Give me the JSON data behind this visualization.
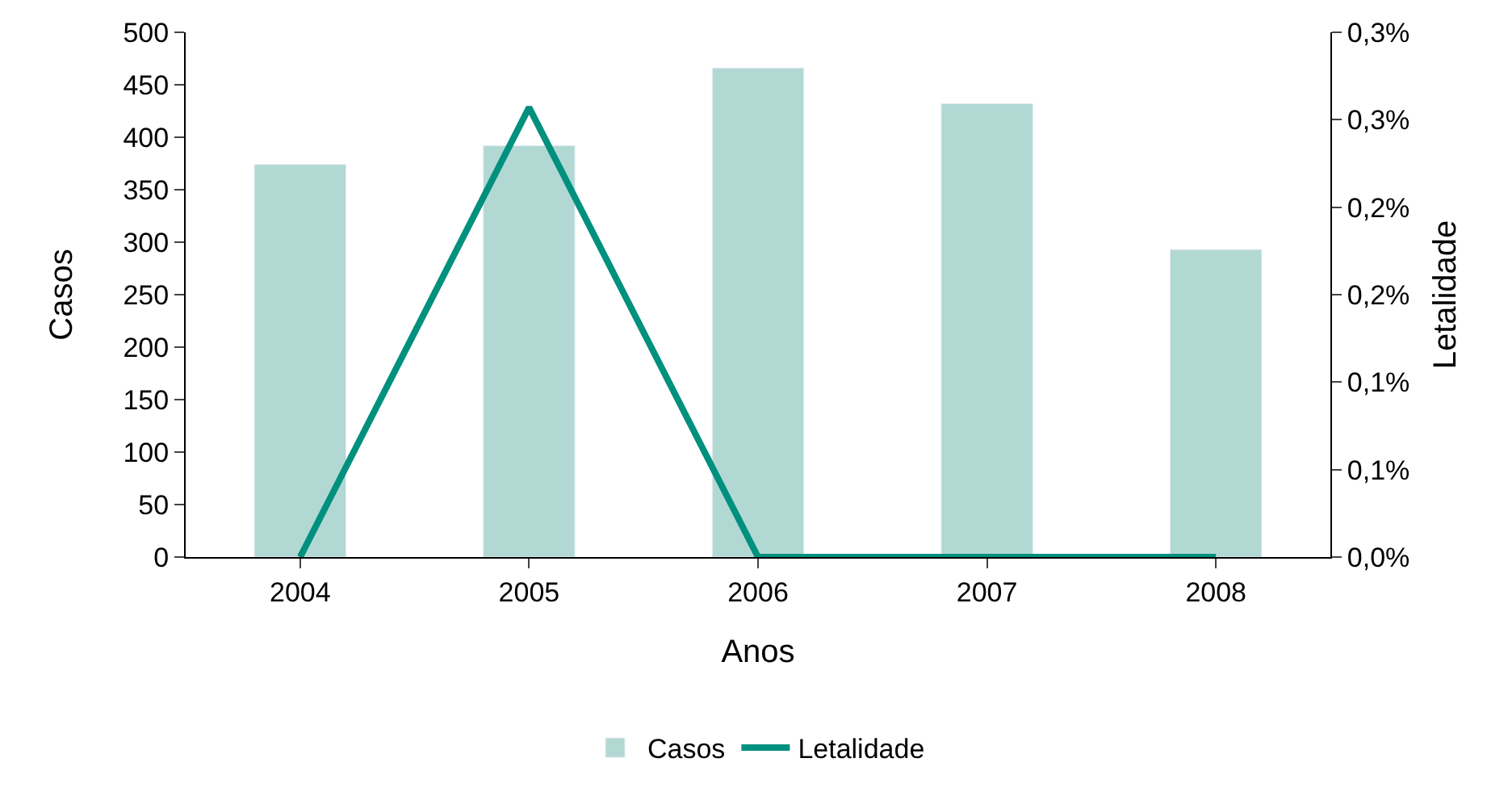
{
  "chart_data": {
    "type": "bar",
    "xlabel": "Anos",
    "ylabel": "Casos",
    "y2label": "Letalidade",
    "categories": [
      "2004",
      "2005",
      "2006",
      "2007",
      "2008"
    ],
    "series": [
      {
        "name": "Casos",
        "color": "#b2d8d4",
        "values": [
          374,
          392,
          466,
          432,
          293
        ]
      },
      {
        "name": "Letalidade",
        "type": "line",
        "axis": "y2",
        "color": "#00907e",
        "values": [
          0,
          0.257,
          0,
          0,
          0
        ]
      }
    ],
    "ylim": [
      0,
      500
    ],
    "yticks": [
      0,
      50,
      100,
      150,
      200,
      250,
      300,
      350,
      400,
      450,
      500
    ],
    "y2lim": [
      0,
      0.3
    ],
    "y2ticks": [
      {
        "value": 0,
        "label": "0,0%"
      },
      {
        "value": 0.05,
        "label": "0,1%"
      },
      {
        "value": 0.1,
        "label": "0,1%"
      },
      {
        "value": 0.15,
        "label": "0,2%"
      },
      {
        "value": 0.2,
        "label": "0,2%"
      },
      {
        "value": 0.25,
        "label": "0,3%"
      },
      {
        "value": 0.3,
        "label": "0,3%"
      }
    ],
    "legend": "bottom",
    "marker": "none",
    "line_style": "solid"
  }
}
